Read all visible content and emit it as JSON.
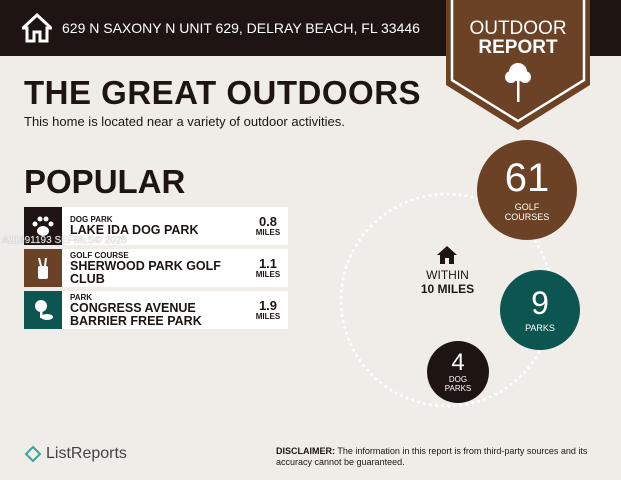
{
  "header": {
    "address": "629 N SAXONY N UNIT 629, DELRAY BEACH, FL 33446",
    "badge_line1": "OUTDOOR",
    "badge_line2": "REPORT"
  },
  "main": {
    "title": "THE GREAT OUTDOORS",
    "subtitle": "This home is located near a variety of outdoor activities.",
    "popular_heading": "POPULAR",
    "items": [
      {
        "category": "DOG PARK",
        "name": "LAKE IDA DOG PARK",
        "distance": "0.8",
        "unit": "MILES",
        "icon": "paw-icon",
        "color": "#1e1512"
      },
      {
        "category": "GOLF COURSE",
        "name": "SHERWOOD PARK GOLF CLUB",
        "distance": "1.1",
        "unit": "MILES",
        "icon": "golf-bag-icon",
        "color": "#6b4226"
      },
      {
        "category": "PARK",
        "name": "CONGRESS AVENUE BARRIER FREE PARK",
        "distance": "1.9",
        "unit": "MILES",
        "icon": "tree-icon",
        "color": "#0d5550"
      }
    ]
  },
  "watermark": "A11991193 SEFMLS© 2026",
  "summary": {
    "within_line1": "WITHIN",
    "within_line2": "10 MILES",
    "golf": {
      "count": "61",
      "label1": "GOLF",
      "label2": "COURSES",
      "color": "#6b4226"
    },
    "parks": {
      "count": "9",
      "label1": "PARKS",
      "color": "#0d5550"
    },
    "dog_parks": {
      "count": "4",
      "label1": "DOG",
      "label2": "PARKS",
      "color": "#1e1512"
    }
  },
  "footer": {
    "logo": "ListReports",
    "disclaimer_label": "DISCLAIMER:",
    "disclaimer_text": " The information in this report is from third-party sources and its accuracy cannot be guaranteed."
  }
}
